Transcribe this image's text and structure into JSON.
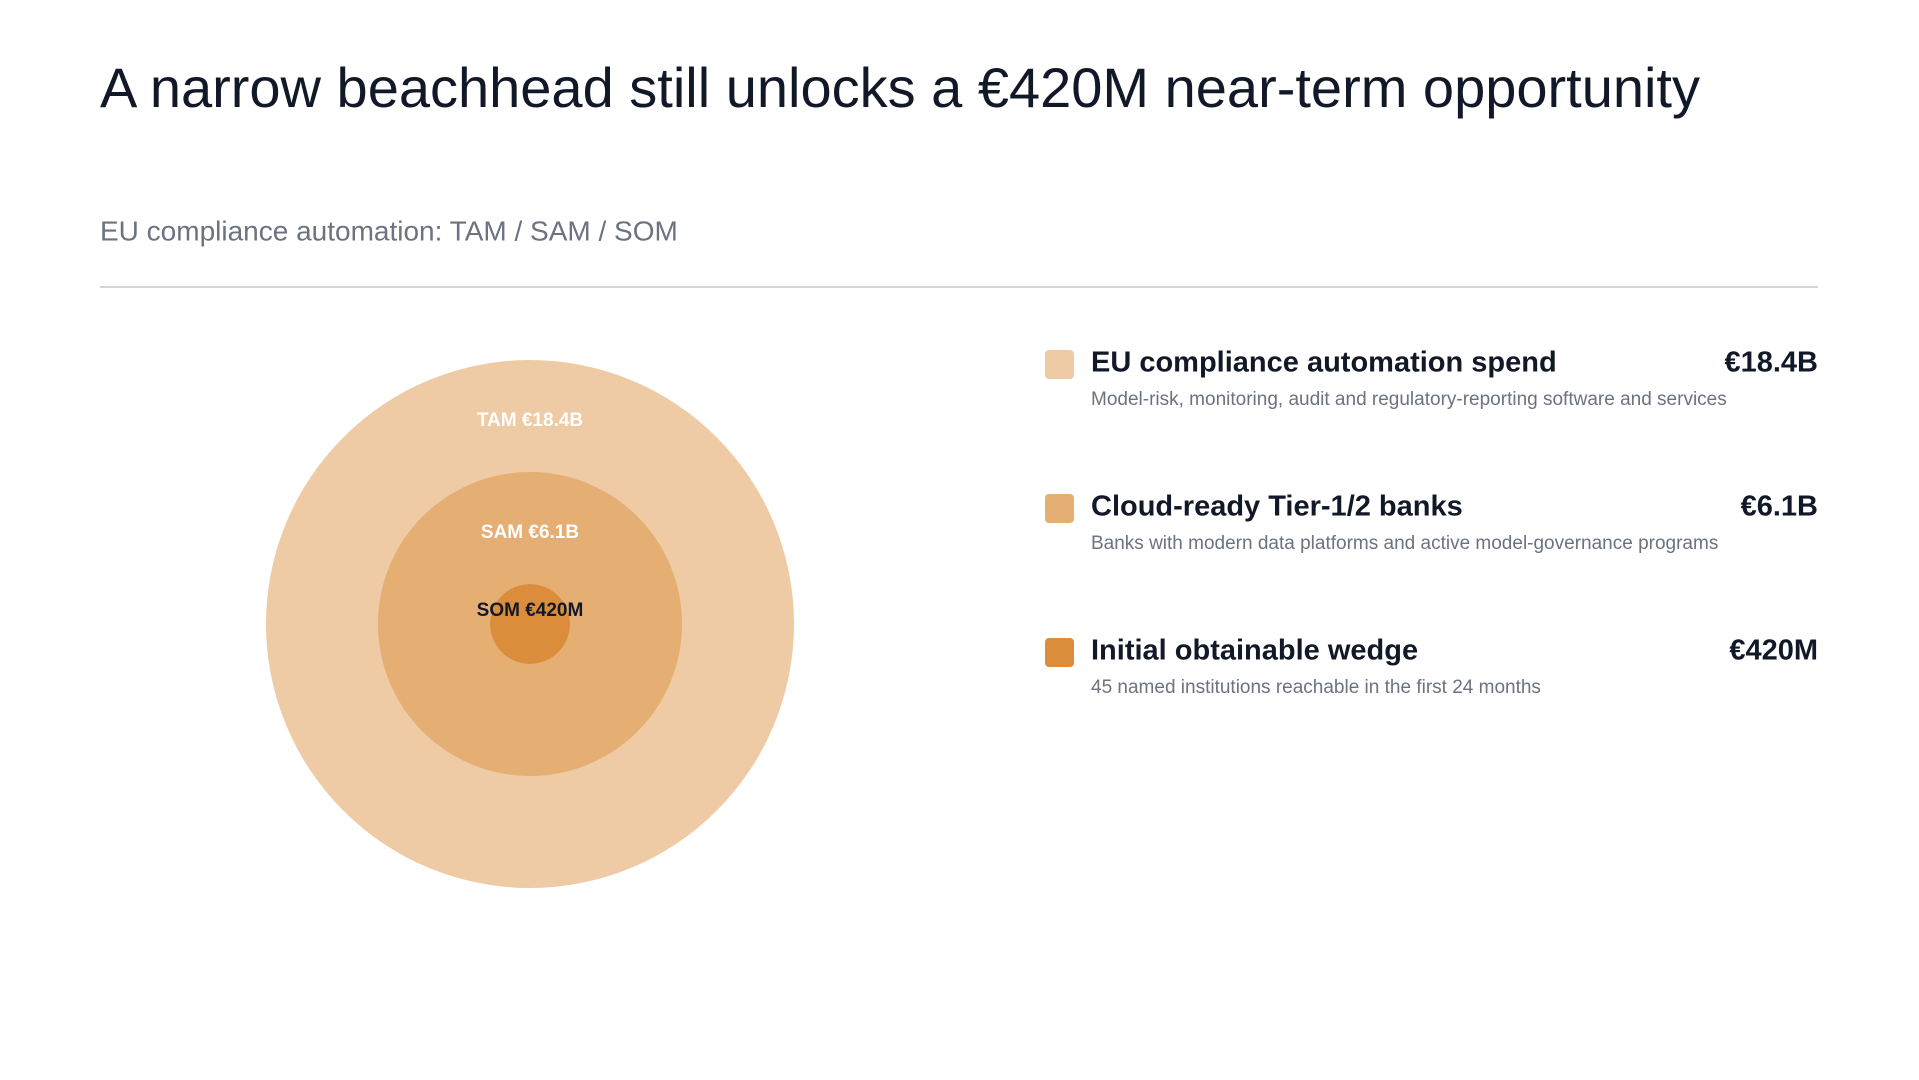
{
  "chart_data": {
    "type": "concentric",
    "title": "A narrow beachhead still unlocks a €420M near-term opportunity",
    "subtitle": "EU compliance automation: TAM / SAM / SOM",
    "values": [
      18.4,
      6.1,
      0.42
    ],
    "circle_labels": [
      "TAM €18.4B",
      "SAM €6.1B",
      "SOM €420M"
    ],
    "value_labels": [
      "€18.4B",
      "€6.1B",
      "€420M"
    ],
    "names": [
      "EU compliance automation spend",
      "Cloud-ready Tier-1/2 banks",
      "Initial obtainable wedge"
    ],
    "descriptions": [
      "Model-risk, monitoring, audit and regulatory-reporting software and services",
      "Banks with modern data platforms and active model-governance programs",
      "45 named institutions reachable in the first 24 months"
    ],
    "colors": [
      "#eecba4",
      "#e5ae72",
      "#dc8d3b"
    ],
    "label_colors": [
      "#ffffff",
      "#ffffff",
      "#111827"
    ]
  }
}
